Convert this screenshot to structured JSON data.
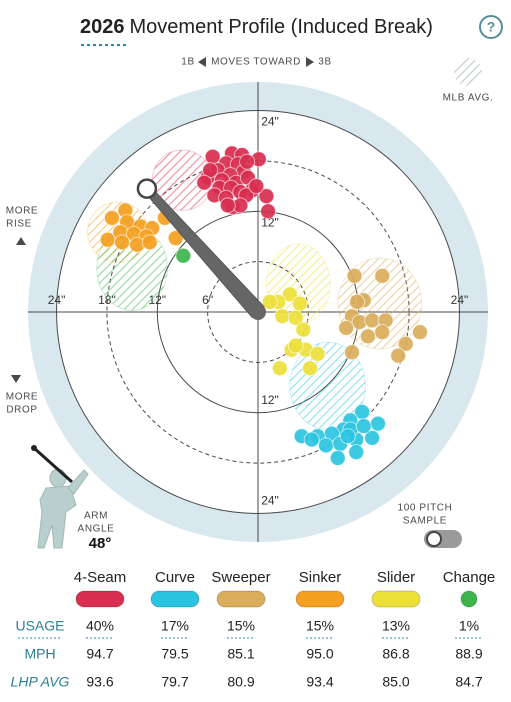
{
  "header": {
    "year": "2026",
    "title": "Movement Profile (Induced Break)",
    "help": "?"
  },
  "chart_data": {
    "type": "scatter",
    "x_direction": {
      "left": "1B",
      "label": "MOVES TOWARD",
      "right": "3B"
    },
    "rise_label": [
      "MORE",
      "RISE"
    ],
    "drop_label": [
      "MORE",
      "DROP"
    ],
    "mlb_avg_label": "MLB AVG.",
    "xlim": [
      -27.4,
      27.4
    ],
    "ylim": [
      -27.4,
      27.4
    ],
    "rings": [
      {
        "value": 6,
        "style": "dashed"
      },
      {
        "value": 12,
        "style": "solid"
      },
      {
        "value": 18,
        "style": "dashed"
      },
      {
        "value": 24,
        "style": "solid"
      }
    ],
    "xticks": [
      {
        "value": -24,
        "label": "24\""
      },
      {
        "value": -18,
        "label": "18\""
      },
      {
        "value": -12,
        "label": "12\""
      },
      {
        "value": -6,
        "label": "6\""
      },
      {
        "value": 12,
        "label": "12\""
      },
      {
        "value": 24,
        "label": "24\""
      }
    ],
    "yticks": [
      {
        "value": 24,
        "label": "24\""
      },
      {
        "value": 12,
        "label": "12\""
      },
      {
        "value": -12,
        "label": "12\""
      },
      {
        "value": -24,
        "label": "24\""
      }
    ],
    "series": [
      {
        "name": "4-Seam",
        "color": "#d82e4f",
        "x": [
          -5.4,
          -3.1,
          -1.9,
          0.1,
          -3.8,
          -2.4,
          -4.8,
          -1.7,
          -3.3,
          -6.0,
          -4.3,
          -2.6,
          -1.2,
          -0.7,
          -4.6,
          -3.2,
          -2.1,
          -5.2,
          -3.8,
          -1.4,
          1.0,
          -3.0,
          -2.1,
          -3.6,
          1.2,
          -5.7,
          -1.3,
          -6.4,
          -0.2
        ],
        "values": [
          18.5,
          18.9,
          18.7,
          18.2,
          17.7,
          17.6,
          16.9,
          16.7,
          16.3,
          16.0,
          15.7,
          15.4,
          16.0,
          14.5,
          14.8,
          14.8,
          14.3,
          13.9,
          13.6,
          13.9,
          13.8,
          12.5,
          12.7,
          12.7,
          12.0,
          16.9,
          17.9,
          15.4,
          15.0
        ],
        "mlb_avg": {
          "x": -9.0,
          "y": 15.7,
          "rx": 3.6,
          "ry": 3.6
        }
      },
      {
        "name": "Curve",
        "color": "#2bc4e0",
        "x": [
          12.4,
          14.3,
          11.0,
          10.2,
          8.8,
          11.7,
          13.6,
          7.1,
          5.2,
          8.1,
          9.8,
          11.7,
          9.5,
          6.4,
          11.0,
          12.6,
          10.7
        ],
        "values": [
          -11.9,
          -13.3,
          -12.9,
          -14.0,
          -14.5,
          -15.2,
          -15.0,
          -14.8,
          -14.8,
          -15.9,
          -15.7,
          -16.7,
          -17.4,
          -15.2,
          -14.0,
          -13.6,
          -14.8
        ],
        "mlb_avg": {
          "x": 8.3,
          "y": -8.8,
          "rx": 4.5,
          "ry": 5.2
        }
      },
      {
        "name": "Sweeper",
        "color": "#d9ad5a",
        "x": [
          11.5,
          14.8,
          12.6,
          11.2,
          10.5,
          12.1,
          13.6,
          15.2,
          13.1,
          14.8,
          19.3,
          17.6,
          16.7,
          11.2,
          11.8
        ],
        "values": [
          4.3,
          4.3,
          1.4,
          -0.5,
          -1.9,
          -1.2,
          -1.0,
          -1.0,
          -2.9,
          -2.4,
          -2.4,
          -3.8,
          -5.2,
          -4.8,
          1.2
        ],
        "mlb_avg": {
          "x": 14.5,
          "y": 1.0,
          "rx": 5.0,
          "ry": 5.4
        }
      },
      {
        "name": "Sinker",
        "color": "#f5a020",
        "x": [
          -15.8,
          -17.4,
          -15.6,
          -14.0,
          -12.6,
          -16.4,
          -14.8,
          -13.3,
          -17.9,
          -16.2,
          -14.4,
          -12.9,
          -9.8,
          -11.1
        ],
        "values": [
          12.1,
          11.2,
          10.7,
          10.2,
          10.0,
          9.5,
          9.3,
          9.0,
          8.6,
          8.3,
          8.0,
          8.3,
          8.8,
          11.2
        ],
        "mlb_avg": {
          "x": -16.7,
          "y": 9.5,
          "rx": 3.6,
          "ry": 3.6
        }
      },
      {
        "name": "Slider",
        "color": "#ede03a",
        "x": [
          3.8,
          2.4,
          5.0,
          2.9,
          4.5,
          5.4,
          4.0,
          5.7,
          7.1,
          2.6,
          6.2,
          4.5,
          1.4
        ],
        "values": [
          2.1,
          1.2,
          1.0,
          -0.5,
          -0.7,
          -2.1,
          -4.5,
          -4.5,
          -5.0,
          -6.7,
          -6.7,
          -4.0,
          1.2
        ],
        "mlb_avg": {
          "x": 4.8,
          "y": 3.3,
          "rx": 3.8,
          "ry": 4.8
        }
      },
      {
        "name": "Change",
        "color": "#3bb54a",
        "x": [
          -8.9
        ],
        "values": [
          6.7
        ],
        "mlb_avg": {
          "x": -15.0,
          "y": 5.2,
          "rx": 4.2,
          "ry": 5.0
        }
      }
    ]
  },
  "arm_angle": {
    "label": [
      "ARM",
      "ANGLE"
    ],
    "value": 48,
    "value_label": "48°"
  },
  "sample_toggle": [
    "100 PITCH",
    "SAMPLE"
  ],
  "table": {
    "rows": [
      {
        "label": "USAGE",
        "cells": [
          "40%",
          "17%",
          "15%",
          "15%",
          "13%",
          "1%"
        ]
      },
      {
        "label": "MPH",
        "cells": [
          "94.7",
          "79.5",
          "85.1",
          "95.0",
          "86.8",
          "88.9"
        ]
      },
      {
        "label": "LHP AVG",
        "cells": [
          "93.6",
          "79.7",
          "80.9",
          "93.4",
          "85.0",
          "84.7"
        ]
      }
    ]
  }
}
